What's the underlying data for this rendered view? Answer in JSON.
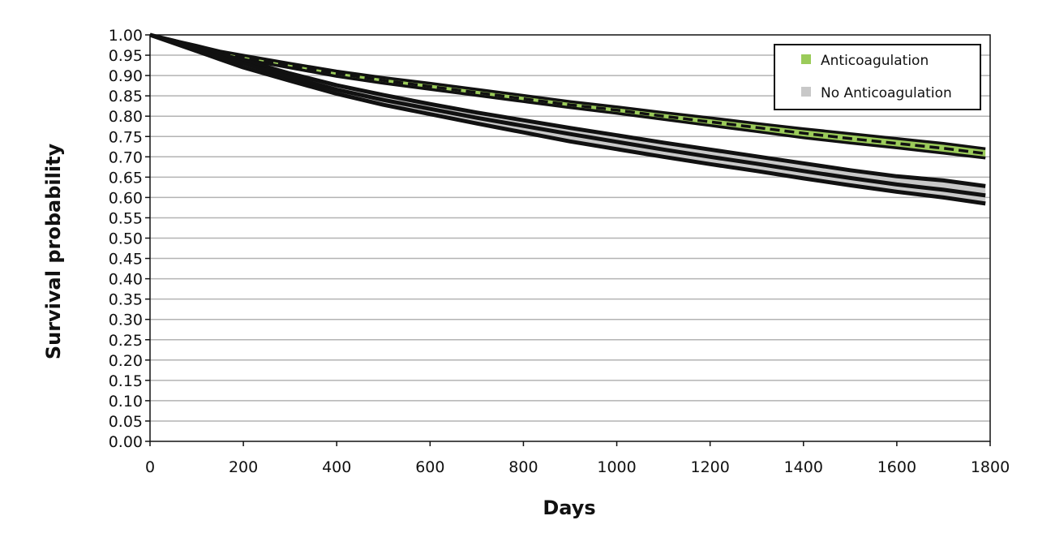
{
  "chart_data": {
    "type": "line",
    "title": "",
    "xlabel": "Days",
    "ylabel": "Survival probability",
    "xlim": [
      0,
      1800
    ],
    "ylim": [
      0,
      1
    ],
    "x_ticks": [
      0,
      200,
      400,
      600,
      800,
      1000,
      1200,
      1400,
      1600,
      1800
    ],
    "x_tick_labels": [
      "0",
      "200",
      "400",
      "600",
      "800",
      "1000",
      "1200",
      "1400",
      "1600",
      "1800"
    ],
    "y_ticks": [
      0,
      0.05,
      0.1,
      0.15,
      0.2,
      0.25,
      0.3,
      0.35,
      0.4,
      0.45,
      0.5,
      0.55,
      0.6,
      0.65,
      0.7,
      0.75,
      0.8,
      0.85,
      0.9,
      0.95,
      1.0
    ],
    "y_tick_labels": [
      "0.00",
      "0.05",
      "0.10",
      "0.15",
      "0.20",
      "0.25",
      "0.30",
      "0.35",
      "0.40",
      "0.45",
      "0.50",
      "0.55",
      "0.60",
      "0.65",
      "0.70",
      "0.75",
      "0.80",
      "0.85",
      "0.90",
      "0.95",
      "1.00"
    ],
    "grid": "horizontal",
    "legend_position": "top-right",
    "series": [
      {
        "name": "Anticoagulation",
        "color": "#9bcb5a",
        "x": [
          0,
          50,
          100,
          150,
          200,
          300,
          400,
          500,
          600,
          700,
          800,
          900,
          1000,
          1100,
          1200,
          1300,
          1400,
          1500,
          1600,
          1700,
          1790
        ],
        "estimate": [
          1.0,
          0.985,
          0.97,
          0.955,
          0.945,
          0.925,
          0.905,
          0.888,
          0.873,
          0.858,
          0.843,
          0.828,
          0.815,
          0.8,
          0.786,
          0.772,
          0.758,
          0.745,
          0.733,
          0.721,
          0.708
        ],
        "lower": [
          1.0,
          0.983,
          0.966,
          0.95,
          0.94,
          0.919,
          0.898,
          0.881,
          0.866,
          0.851,
          0.836,
          0.821,
          0.807,
          0.792,
          0.777,
          0.762,
          0.747,
          0.734,
          0.722,
          0.709,
          0.697
        ],
        "upper": [
          1.0,
          0.987,
          0.974,
          0.96,
          0.95,
          0.93,
          0.911,
          0.895,
          0.881,
          0.866,
          0.851,
          0.836,
          0.823,
          0.809,
          0.796,
          0.782,
          0.769,
          0.757,
          0.745,
          0.733,
          0.72
        ]
      },
      {
        "name": "No Anticoagulation",
        "color": "#c8c8c8",
        "x": [
          0,
          50,
          100,
          150,
          200,
          300,
          400,
          500,
          600,
          700,
          800,
          900,
          1000,
          1100,
          1200,
          1300,
          1400,
          1500,
          1600,
          1700,
          1790
        ],
        "estimate": [
          1.0,
          0.983,
          0.965,
          0.945,
          0.93,
          0.896,
          0.865,
          0.84,
          0.818,
          0.796,
          0.776,
          0.756,
          0.737,
          0.718,
          0.7,
          0.683,
          0.665,
          0.648,
          0.632,
          0.619,
          0.605
        ],
        "lower": [
          1.0,
          0.98,
          0.96,
          0.94,
          0.92,
          0.887,
          0.855,
          0.828,
          0.805,
          0.782,
          0.76,
          0.738,
          0.719,
          0.7,
          0.682,
          0.665,
          0.647,
          0.63,
          0.614,
          0.6,
          0.585
        ],
        "upper": [
          1.0,
          0.986,
          0.97,
          0.952,
          0.938,
          0.905,
          0.876,
          0.852,
          0.83,
          0.809,
          0.79,
          0.771,
          0.753,
          0.735,
          0.718,
          0.701,
          0.684,
          0.667,
          0.652,
          0.642,
          0.628
        ]
      }
    ]
  }
}
